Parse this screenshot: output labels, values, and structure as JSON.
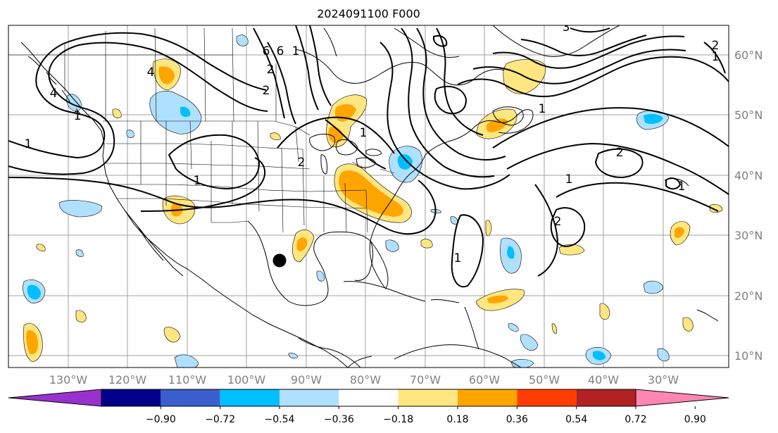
{
  "title": "2024091100 F000",
  "map": {
    "lon_labels": [
      "130°W",
      "120°W",
      "110°W",
      "100°W",
      "90°W",
      "80°W",
      "70°W",
      "60°W",
      "50°W",
      "40°W",
      "30°W"
    ],
    "lat_labels": [
      "60°N",
      "50°N",
      "40°N",
      "30°N",
      "20°N",
      "10°N"
    ],
    "grid_color": "#a0a0a0",
    "land_outline_color": "#000000",
    "storm_marker": {
      "label": "storm-center",
      "lon": -94.5,
      "lat": 25.8
    }
  },
  "contour_labels": [
    "4",
    "6",
    "6",
    "1",
    "2",
    "2",
    "1",
    "3",
    "1",
    "4",
    "1",
    "1",
    "2",
    "1",
    "1",
    "2",
    "1",
    "2",
    "1",
    "1",
    "2"
  ],
  "colorbar": {
    "colors": [
      "#9932cc",
      "#00008b",
      "#3a5fcd",
      "#00bfff",
      "#b0e0ff",
      "#ffffff",
      "#ffe680",
      "#ffa500",
      "#ff3d00",
      "#b22222",
      "#ff85b3"
    ],
    "tick_labels": [
      "−0.90",
      "−0.72",
      "−0.54",
      "−0.36",
      "−0.18",
      "0.18",
      "0.36",
      "0.54",
      "0.72",
      "0.90"
    ],
    "extend": "both"
  }
}
